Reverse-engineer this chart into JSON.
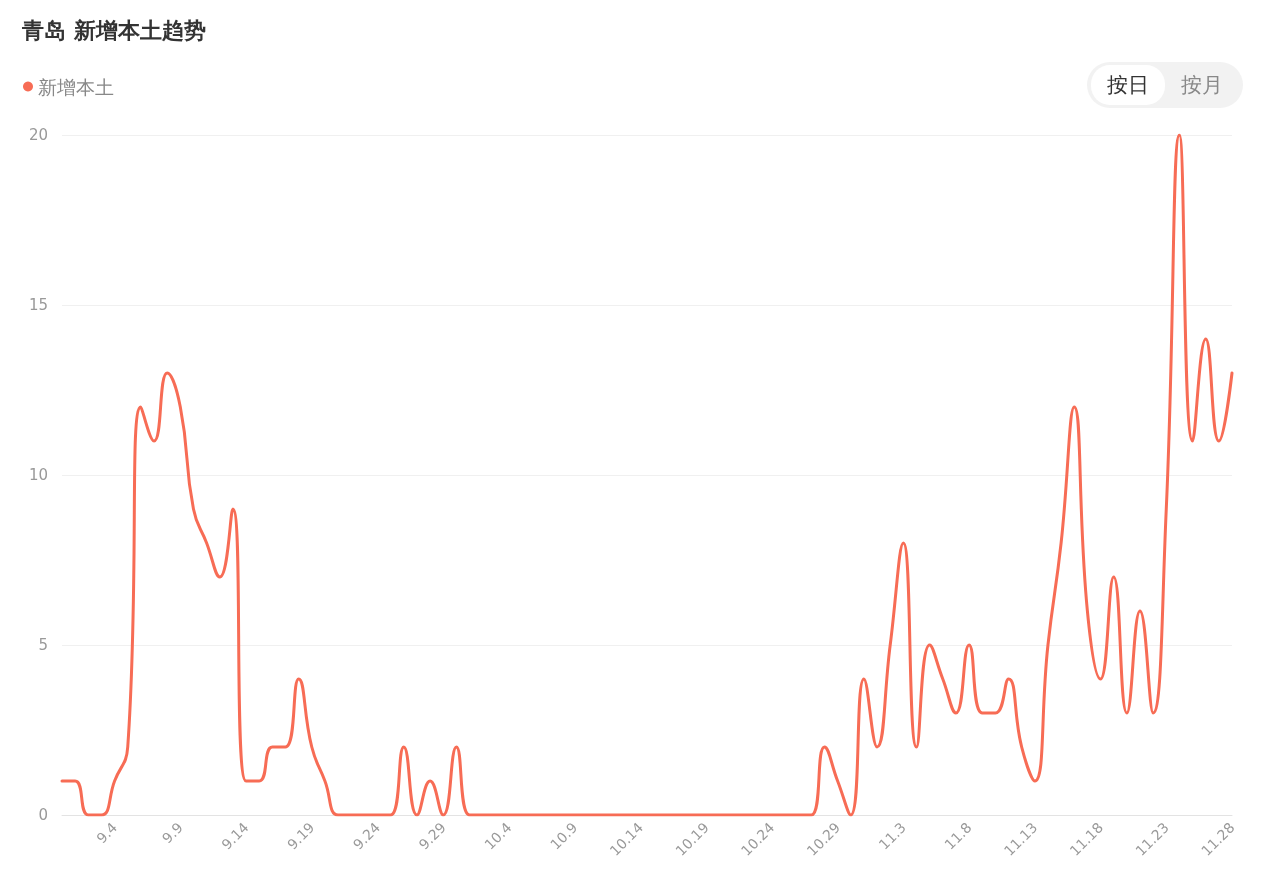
{
  "chart_data": {
    "type": "line",
    "title": "青岛 新增本土趋势",
    "categories": [
      null,
      null,
      null,
      null,
      "9.4",
      null,
      null,
      null,
      null,
      "9.9",
      null,
      null,
      null,
      null,
      "9.14",
      null,
      null,
      null,
      null,
      "9.19",
      null,
      null,
      null,
      null,
      "9.24",
      null,
      null,
      null,
      null,
      "9.29",
      null,
      null,
      null,
      null,
      "10.4",
      null,
      null,
      null,
      null,
      "10.9",
      null,
      null,
      null,
      null,
      "10.14",
      null,
      null,
      null,
      null,
      "10.19",
      null,
      null,
      null,
      null,
      "10.24",
      null,
      null,
      null,
      null,
      "10.29",
      null,
      null,
      null,
      null,
      "11.3",
      null,
      null,
      null,
      null,
      "11.8",
      null,
      null,
      null,
      null,
      "11.13",
      null,
      null,
      null,
      null,
      "11.18",
      null,
      null,
      null,
      null,
      "11.23",
      null,
      null,
      null,
      null,
      "11.28"
    ],
    "series": [
      {
        "name": "新增本土",
        "color": "#f76c55",
        "values": [
          1,
          1,
          0,
          0,
          1,
          2,
          12,
          11,
          13,
          12,
          9,
          8,
          7,
          9,
          1,
          1,
          2,
          2,
          4,
          2,
          1,
          0,
          0,
          0,
          0,
          0,
          2,
          0,
          1,
          0,
          2,
          0,
          0,
          0,
          0,
          0,
          0,
          0,
          0,
          0,
          0,
          0,
          0,
          0,
          0,
          0,
          0,
          0,
          0,
          0,
          0,
          0,
          0,
          0,
          0,
          0,
          0,
          0,
          2,
          1,
          0,
          4,
          2,
          5,
          8,
          2,
          5,
          4,
          3,
          5,
          3,
          3,
          4,
          2,
          1,
          5,
          8,
          12,
          6,
          4,
          7,
          3,
          6,
          3,
          9,
          20,
          11,
          14,
          11,
          13
        ]
      }
    ],
    "ylim": [
      0,
      20
    ],
    "yticks": [
      0,
      5,
      10,
      15,
      20
    ],
    "grid": "y",
    "legend": "top left",
    "marker": "none",
    "line_style": "solid",
    "annotations": [
      "按日",
      "按月"
    ]
  }
}
